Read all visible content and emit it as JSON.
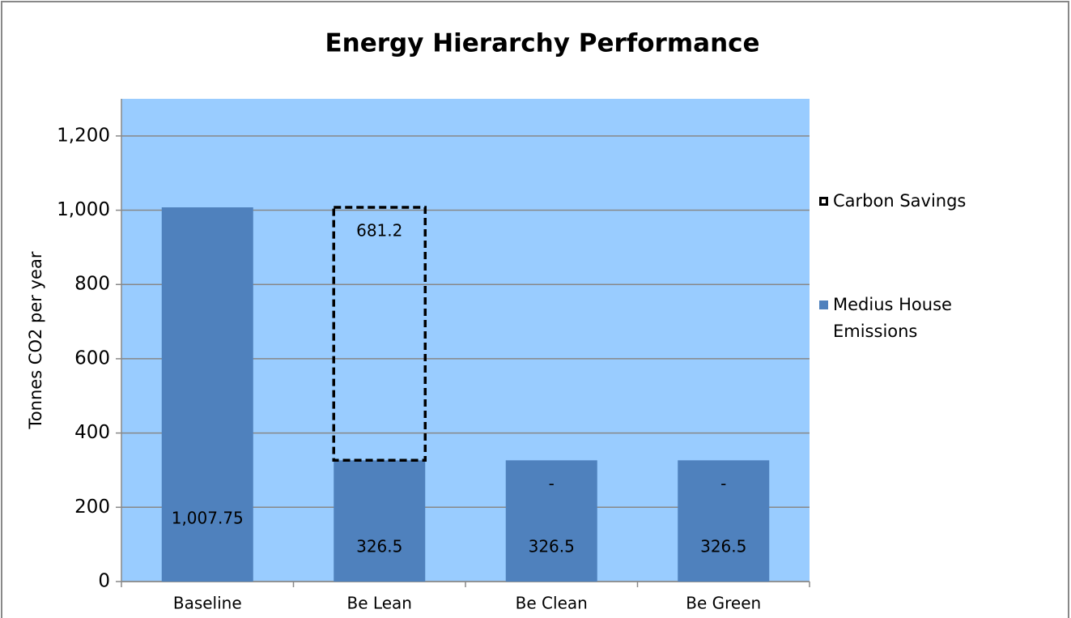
{
  "chart_data": {
    "type": "stacked-bar",
    "title": "Energy Hierarchy Performance",
    "y_label": "Tonnes CO2 per year",
    "categories": [
      "Baseline",
      "Be Lean",
      "Be Clean",
      "Be Green"
    ],
    "series": [
      {
        "name": "Medius House Emissions",
        "color": "#4f81bd",
        "values": [
          1007.75,
          326.5,
          326.5,
          326.5
        ],
        "value_labels": [
          "1,007.75",
          "326.5",
          "326.5",
          "326.5"
        ]
      },
      {
        "name": "Carbon Savings",
        "color": "#000000",
        "style": "dashed-outline",
        "values": [
          null,
          681.2,
          0,
          0
        ],
        "value_labels": [
          null,
          "681.2",
          "-",
          "-"
        ]
      }
    ],
    "ylim": [
      0,
      1300
    ],
    "yticks": [
      0,
      200,
      400,
      600,
      800,
      {
        "value": 1000,
        "label": "1,000"
      },
      {
        "value": 1200,
        "label": "1,200"
      }
    ],
    "grid": true,
    "legend": "right",
    "plot_background": "#99ccff"
  }
}
